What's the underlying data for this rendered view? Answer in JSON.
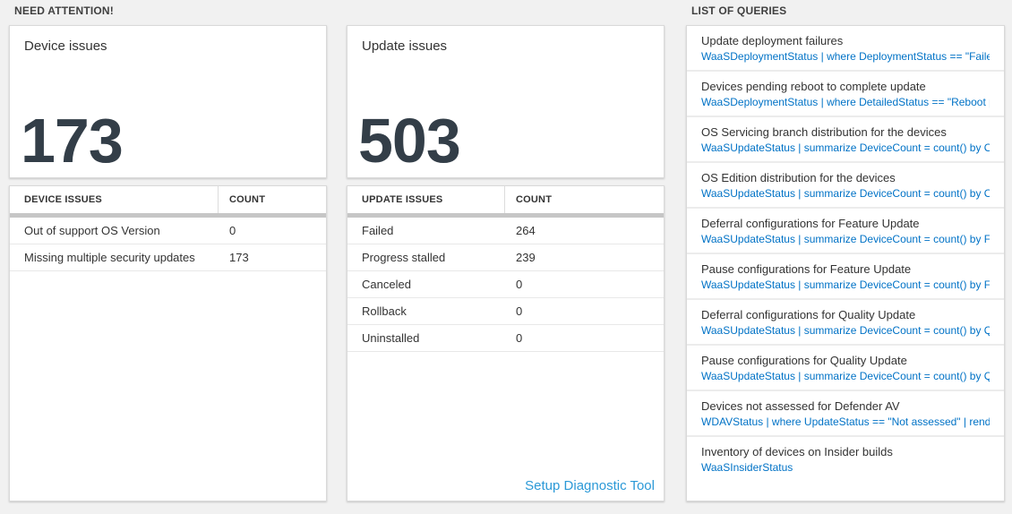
{
  "colors": {
    "page_background": "#f1f1f1",
    "card_background": "#ffffff",
    "big_number": "#333e48",
    "query_code_blue": "#0072c6",
    "setup_link_blue": "#2b99d7",
    "table_bar_gray": "#c6c6c6"
  },
  "attention": {
    "label": "NEED ATTENTION!",
    "cards": [
      {
        "title": "Device issues",
        "value": "173",
        "table": {
          "headers": [
            "DEVICE ISSUES",
            "COUNT"
          ],
          "rows": [
            [
              "Out of support OS Version",
              "0"
            ],
            [
              "Missing multiple security updates",
              "173"
            ]
          ]
        }
      },
      {
        "title": "Update issues",
        "value": "503",
        "table": {
          "headers": [
            "UPDATE ISSUES",
            "COUNT"
          ],
          "rows": [
            [
              "Failed",
              "264"
            ],
            [
              "Progress stalled",
              "239"
            ],
            [
              "Canceled",
              "0"
            ],
            [
              "Rollback",
              "0"
            ],
            [
              "Uninstalled",
              "0"
            ]
          ]
        },
        "footer_link": "Setup Diagnostic Tool"
      }
    ]
  },
  "queries": {
    "label": "LIST OF QUERIES",
    "items": [
      {
        "title": "Update deployment failures",
        "query": "WaaSDeploymentStatus | where DeploymentStatus == \"Failed\" |..."
      },
      {
        "title": "Devices pending reboot to complete update",
        "query": "WaaSDeploymentStatus | where DetailedStatus == \"Reboot pend..."
      },
      {
        "title": "OS Servicing branch distribution for the devices",
        "query": "WaaSUpdateStatus | summarize DeviceCount = count() by OSSer..."
      },
      {
        "title": "OS Edition distribution for the devices",
        "query": "WaaSUpdateStatus | summarize DeviceCount = count() by OSEdit..."
      },
      {
        "title": "Deferral configurations for Feature Update",
        "query": "WaaSUpdateStatus | summarize DeviceCount = count() by Featur..."
      },
      {
        "title": "Pause configurations for Feature Update",
        "query": "WaaSUpdateStatus | summarize DeviceCount = count() by Featur..."
      },
      {
        "title": "Deferral configurations for Quality Update",
        "query": "WaaSUpdateStatus | summarize DeviceCount = count() by Qualit..."
      },
      {
        "title": "Pause configurations for Quality Update",
        "query": "WaaSUpdateStatus | summarize DeviceCount = count() by Qualit..."
      },
      {
        "title": "Devices not assessed for Defender AV",
        "query": "WDAVStatus | where UpdateStatus == \"Not assessed\" | render ta..."
      },
      {
        "title": "Inventory of devices on Insider builds",
        "query": "WaaSInsiderStatus"
      }
    ]
  }
}
